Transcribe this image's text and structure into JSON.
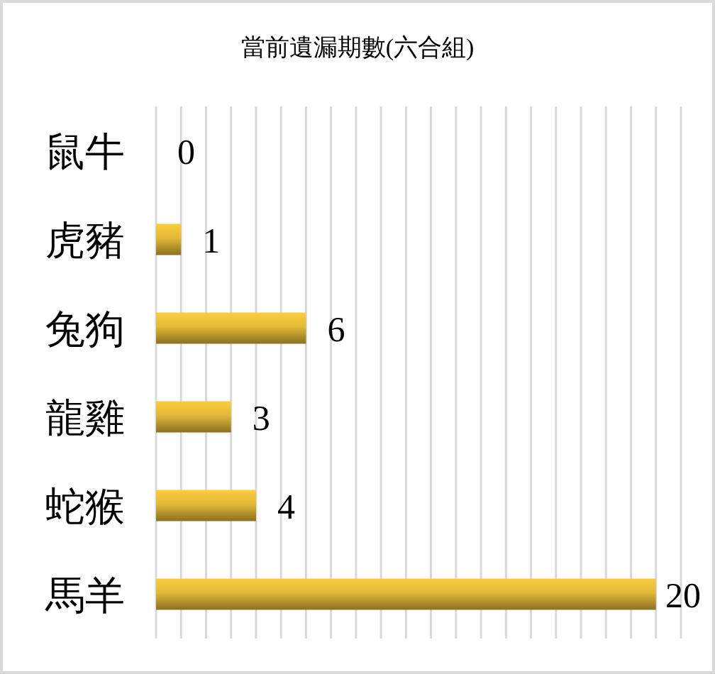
{
  "chart_data": {
    "type": "bar",
    "orientation": "horizontal",
    "title": "當前遺漏期數(六合組)",
    "categories": [
      "鼠牛",
      "虎豬",
      "兔狗",
      "龍雞",
      "蛇猴",
      "馬羊"
    ],
    "values": [
      0,
      1,
      6,
      3,
      4,
      20
    ],
    "color": "#fbcd3e",
    "data_labels": true,
    "xlim": [
      0,
      21
    ],
    "xticks": [
      {
        "value": 0,
        "label": null
      },
      {
        "value": 1,
        "label": null
      },
      {
        "value": 2,
        "label": null
      },
      {
        "value": 3,
        "label": null
      },
      {
        "value": 4,
        "label": null
      },
      {
        "value": 5,
        "label": null
      },
      {
        "value": 6,
        "label": null
      },
      {
        "value": 7,
        "label": null
      },
      {
        "value": 8,
        "label": null
      },
      {
        "value": 9,
        "label": null
      },
      {
        "value": 10,
        "label": null
      },
      {
        "value": 11,
        "label": null
      },
      {
        "value": 12,
        "label": null
      },
      {
        "value": 13,
        "label": null
      },
      {
        "value": 14,
        "label": null
      },
      {
        "value": 15,
        "label": null
      },
      {
        "value": 16,
        "label": null
      },
      {
        "value": 17,
        "label": null
      },
      {
        "value": 18,
        "label": null
      },
      {
        "value": 19,
        "label": null
      },
      {
        "value": 20,
        "label": null
      },
      {
        "value": 21,
        "label": null
      }
    ],
    "grid": "x",
    "tick_labels": "y"
  }
}
